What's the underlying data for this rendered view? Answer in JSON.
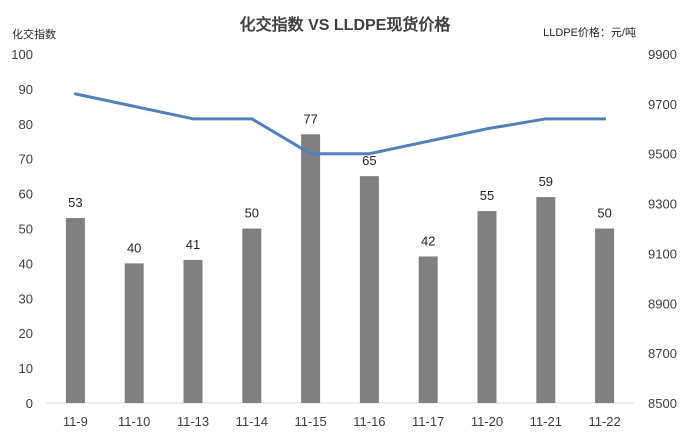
{
  "chart_data": {
    "type": "bar",
    "title": "化交指数 VS LLDPE现货价格",
    "ylabel": "化交指数",
    "y2label": "LLDPE价格：元/吨",
    "categories": [
      "11-9",
      "11-10",
      "11-13",
      "11-14",
      "11-15",
      "11-16",
      "11-17",
      "11-20",
      "11-21",
      "11-22"
    ],
    "series": [
      {
        "type": "bar",
        "axis": "left",
        "color": "#808080",
        "values": [
          53,
          40,
          41,
          50,
          77,
          65,
          42,
          55,
          59,
          50
        ]
      },
      {
        "type": "line",
        "axis": "right",
        "color": "#4f81bd",
        "values": [
          9740,
          9690,
          9640,
          9640,
          9500,
          9500,
          9550,
          9600,
          9640,
          9640
        ]
      }
    ],
    "ylim": [
      0,
      100
    ],
    "yticks": [
      "0",
      "10",
      "20",
      "30",
      "40",
      "50",
      "60",
      "70",
      "80",
      "90",
      "100"
    ],
    "y2lim": [
      8500,
      9900
    ],
    "y2ticks": [
      "8500",
      "8700",
      "8900",
      "9100",
      "9300",
      "9500",
      "9700",
      "9900"
    ],
    "grid": false,
    "legend": "none"
  }
}
